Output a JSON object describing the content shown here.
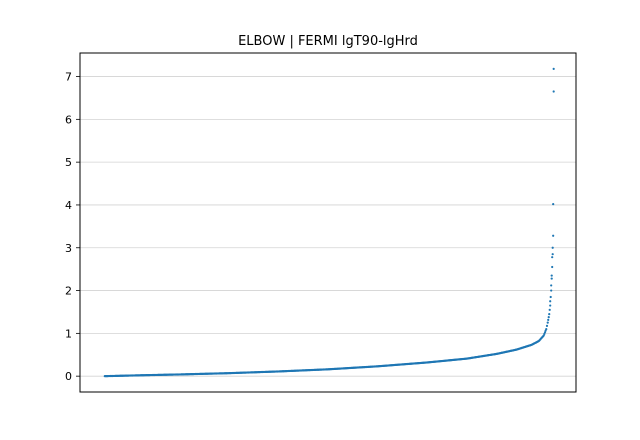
{
  "chart_data": {
    "type": "scatter",
    "title": "ELBOW | FERMI lgT90-lgHrd",
    "xlabel": "",
    "ylabel": "",
    "ylim": [
      -0.37,
      7.55
    ],
    "xlim": [
      0,
      1
    ],
    "grid": "horizontal",
    "yticks": [
      0,
      1,
      2,
      3,
      4,
      5,
      6,
      7
    ],
    "xticks": [],
    "marker_color": "#1f77b4",
    "curve_nodes": [
      [
        0.05,
        0.0
      ],
      [
        0.12,
        0.02
      ],
      [
        0.2,
        0.04
      ],
      [
        0.3,
        0.07
      ],
      [
        0.4,
        0.11
      ],
      [
        0.5,
        0.16
      ],
      [
        0.6,
        0.23
      ],
      [
        0.7,
        0.32
      ],
      [
        0.78,
        0.41
      ],
      [
        0.84,
        0.52
      ],
      [
        0.88,
        0.62
      ],
      [
        0.91,
        0.73
      ],
      [
        0.925,
        0.82
      ],
      [
        0.935,
        0.95
      ],
      [
        0.94,
        1.1
      ],
      [
        0.943,
        1.25
      ],
      [
        0.945,
        1.38
      ]
    ],
    "outliers": [
      [
        0.946,
        1.45
      ],
      [
        0.947,
        1.55
      ],
      [
        0.948,
        1.65
      ],
      [
        0.948,
        1.75
      ],
      [
        0.949,
        1.85
      ],
      [
        0.95,
        2.0
      ],
      [
        0.95,
        2.12
      ],
      [
        0.951,
        2.28
      ],
      [
        0.951,
        2.35
      ],
      [
        0.952,
        2.55
      ],
      [
        0.952,
        2.78
      ],
      [
        0.953,
        2.85
      ],
      [
        0.953,
        3.0
      ],
      [
        0.954,
        3.28
      ],
      [
        0.954,
        4.02
      ],
      [
        0.955,
        6.65
      ],
      [
        0.955,
        7.18
      ]
    ]
  }
}
